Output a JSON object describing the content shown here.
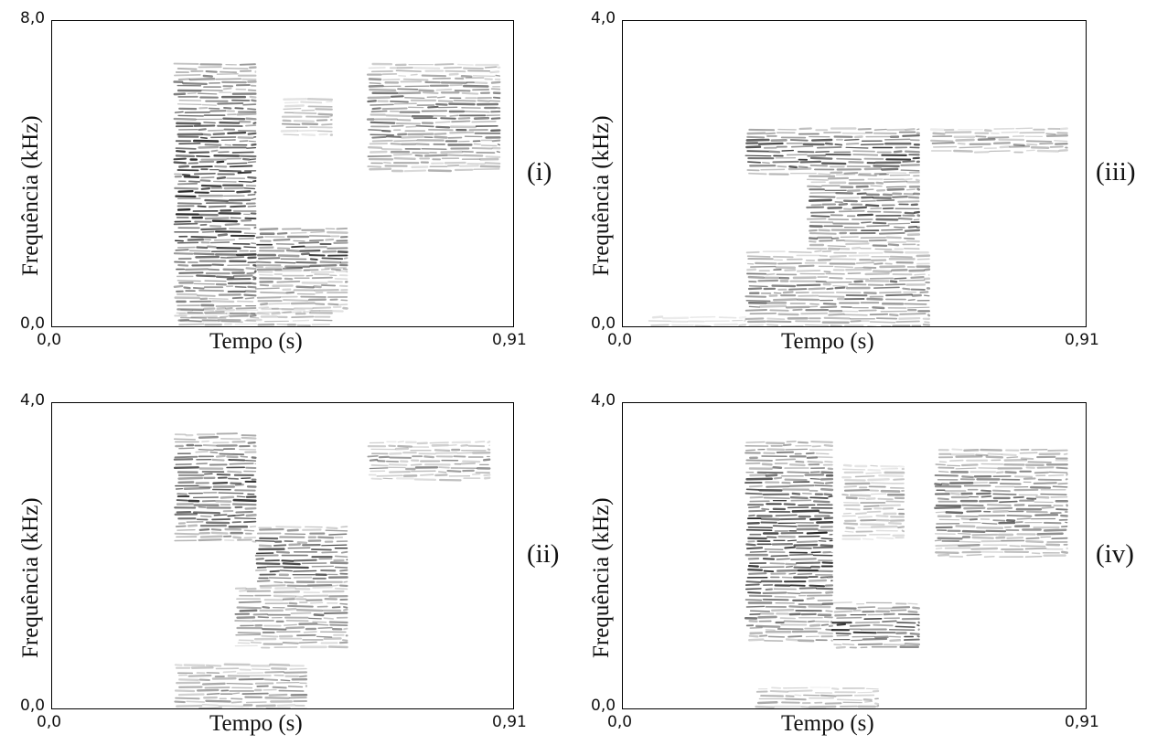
{
  "chart_data": [
    {
      "type": "heatmap",
      "panel_label": "(i)",
      "xlabel": "Tempo (s)",
      "ylabel": "Frequência (kHz)",
      "x_ticks": [
        "0,0",
        "0,91"
      ],
      "y_ticks": [
        "0,0",
        "8,0"
      ],
      "xlim": [
        0,
        0.91
      ],
      "ylim": [
        0,
        8.0
      ],
      "grid": false,
      "energy_regions": [
        {
          "t0": 0.24,
          "t1": 0.4,
          "f0": 0.2,
          "f1": 6.9,
          "intensity": 0.85
        },
        {
          "t0": 0.4,
          "t1": 0.58,
          "f0": 1.5,
          "f1": 2.6,
          "intensity": 0.8
        },
        {
          "t0": 0.4,
          "t1": 0.58,
          "f0": 0.4,
          "f1": 1.6,
          "intensity": 0.45
        },
        {
          "t0": 0.45,
          "t1": 0.55,
          "f0": 5.0,
          "f1": 6.0,
          "intensity": 0.4
        },
        {
          "t0": 0.62,
          "t1": 0.88,
          "f0": 4.1,
          "f1": 6.9,
          "intensity": 0.6
        },
        {
          "t0": 0.25,
          "t1": 0.55,
          "f0": 0.0,
          "f1": 0.5,
          "intensity": 0.35
        }
      ]
    },
    {
      "type": "heatmap",
      "panel_label": "(iii)",
      "xlabel": "Tempo (s)",
      "ylabel": "Frequência (kHz)",
      "x_ticks": [
        "0,0",
        "0,91"
      ],
      "y_ticks": [
        "0,0",
        "4,0"
      ],
      "xlim": [
        0,
        0.91
      ],
      "ylim": [
        0,
        4.0
      ],
      "grid": false,
      "energy_regions": [
        {
          "t0": 0.24,
          "t1": 0.58,
          "f0": 2.0,
          "f1": 2.6,
          "intensity": 0.8
        },
        {
          "t0": 0.36,
          "t1": 0.58,
          "f0": 1.0,
          "f1": 2.0,
          "intensity": 0.7
        },
        {
          "t0": 0.24,
          "t1": 0.6,
          "f0": 0.0,
          "f1": 1.0,
          "intensity": 0.55
        },
        {
          "t0": 0.6,
          "t1": 0.87,
          "f0": 2.3,
          "f1": 2.6,
          "intensity": 0.45
        },
        {
          "t0": 0.05,
          "t1": 0.24,
          "f0": 0.0,
          "f1": 0.15,
          "intensity": 0.25
        }
      ]
    },
    {
      "type": "heatmap",
      "panel_label": "(ii)",
      "xlabel": "Tempo (s)",
      "ylabel": "Frequência (kHz)",
      "x_ticks": [
        "0,0",
        "0,91"
      ],
      "y_ticks": [
        "0,0",
        "4,0"
      ],
      "xlim": [
        0,
        0.91
      ],
      "ylim": [
        0,
        4.0
      ],
      "grid": false,
      "energy_regions": [
        {
          "t0": 0.24,
          "t1": 0.4,
          "f0": 2.2,
          "f1": 3.6,
          "intensity": 0.8
        },
        {
          "t0": 0.4,
          "t1": 0.58,
          "f0": 1.6,
          "f1": 2.4,
          "intensity": 0.8
        },
        {
          "t0": 0.36,
          "t1": 0.58,
          "f0": 0.8,
          "f1": 1.6,
          "intensity": 0.55
        },
        {
          "t0": 0.24,
          "t1": 0.5,
          "f0": 0.0,
          "f1": 0.6,
          "intensity": 0.5
        },
        {
          "t0": 0.62,
          "t1": 0.86,
          "f0": 3.0,
          "f1": 3.5,
          "intensity": 0.45
        }
      ]
    },
    {
      "type": "heatmap",
      "panel_label": "(iv)",
      "xlabel": "Tempo (s)",
      "ylabel": "Frequência (kHz)",
      "x_ticks": [
        "0,0",
        "0,91"
      ],
      "y_ticks": [
        "0,0",
        "4,0"
      ],
      "xlim": [
        0,
        0.91
      ],
      "ylim": [
        0,
        4.0
      ],
      "grid": false,
      "energy_regions": [
        {
          "t0": 0.24,
          "t1": 0.41,
          "f0": 0.9,
          "f1": 3.5,
          "intensity": 0.85
        },
        {
          "t0": 0.41,
          "t1": 0.58,
          "f0": 0.8,
          "f1": 1.4,
          "intensity": 0.8
        },
        {
          "t0": 0.43,
          "t1": 0.55,
          "f0": 2.2,
          "f1": 3.2,
          "intensity": 0.4
        },
        {
          "t0": 0.61,
          "t1": 0.87,
          "f0": 2.0,
          "f1": 3.4,
          "intensity": 0.6
        },
        {
          "t0": 0.26,
          "t1": 0.5,
          "f0": 0.0,
          "f1": 0.3,
          "intensity": 0.35
        }
      ]
    }
  ]
}
